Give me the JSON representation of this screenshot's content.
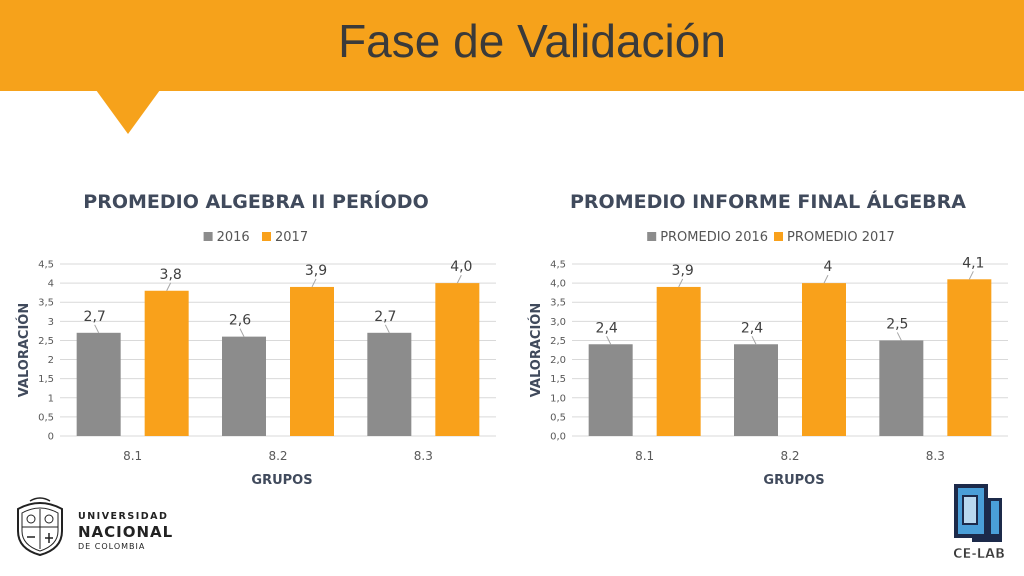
{
  "slide": {
    "title": "Fase de Validación"
  },
  "logo_left": {
    "line1": "UNIVERSIDAD",
    "line2": "NACIONAL",
    "line3": "DE COLOMBIA"
  },
  "logo_right": {
    "text": "CE-LAB"
  },
  "colors": {
    "banner": "#f6a21b",
    "series_gray": "#8c8c8c",
    "series_orange": "#f9a11b",
    "title_text": "#404a5c"
  },
  "chart_data": [
    {
      "type": "bar",
      "title": "PROMEDIO ALGEBRA II PERÍODO",
      "xlabel": "GRUPOS",
      "ylabel": "VALORACIÓN",
      "categories": [
        "8.1",
        "8.2",
        "8.3"
      ],
      "y_ticks": [
        "0",
        "0,5",
        "1",
        "1,5",
        "2",
        "2,5",
        "3",
        "3,5",
        "4",
        "4,5"
      ],
      "ylim": [
        0,
        4.5
      ],
      "grid": true,
      "legend": "top-center",
      "series": [
        {
          "name": "2016",
          "color": "#8c8c8c",
          "values": [
            2.7,
            2.6,
            2.7
          ],
          "labels": [
            "2,7",
            "2,6",
            "2,7"
          ]
        },
        {
          "name": "2017",
          "color": "#f9a11b",
          "values": [
            3.8,
            3.9,
            4.0
          ],
          "labels": [
            "3,8",
            "3,9",
            "4,0"
          ]
        }
      ]
    },
    {
      "type": "bar",
      "title": "PROMEDIO INFORME FINAL ÁLGEBRA",
      "xlabel": "GRUPOS",
      "ylabel": "VALORACIÓN",
      "categories": [
        "8.1",
        "8.2",
        "8.3"
      ],
      "y_ticks": [
        "0,0",
        "0,5",
        "1,0",
        "1,5",
        "2,0",
        "2,5",
        "3,0",
        "3,5",
        "4,0",
        "4,5"
      ],
      "ylim": [
        0,
        4.5
      ],
      "grid": true,
      "legend": "top-center",
      "series": [
        {
          "name": "PROMEDIO 2016",
          "color": "#8c8c8c",
          "values": [
            2.4,
            2.4,
            2.5
          ],
          "labels": [
            "2,4",
            "2,4",
            "2,5"
          ]
        },
        {
          "name": "PROMEDIO 2017",
          "color": "#f9a11b",
          "values": [
            3.9,
            4.0,
            4.1
          ],
          "labels": [
            "3,9",
            "4",
            "4,1"
          ]
        }
      ]
    }
  ]
}
